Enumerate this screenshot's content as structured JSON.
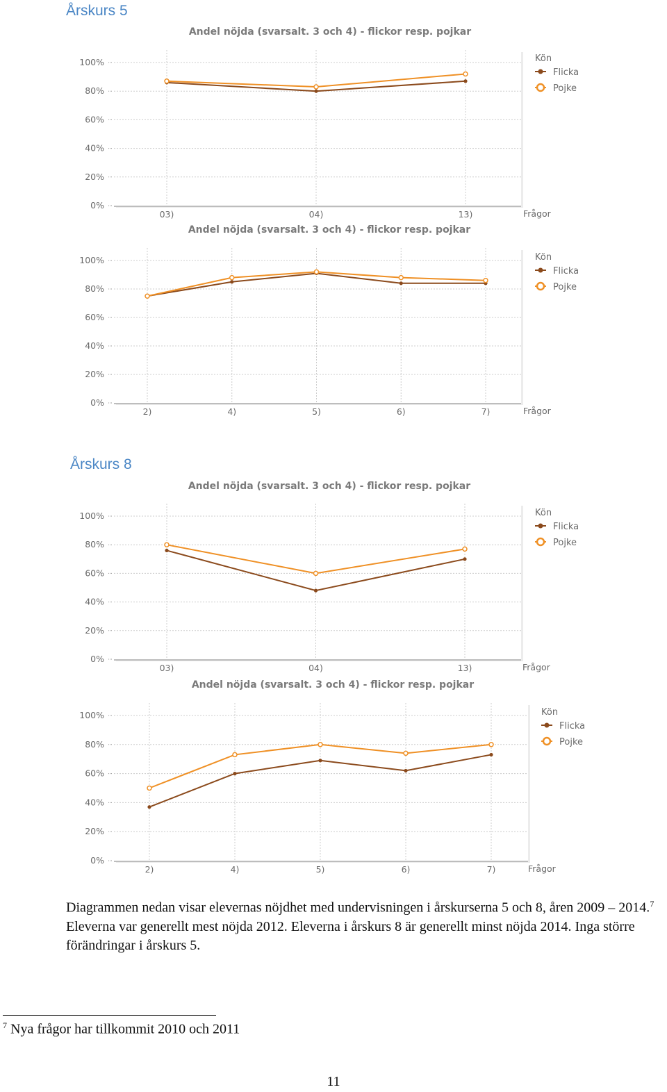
{
  "sections": [
    {
      "title": "Årskurs 5"
    },
    {
      "title": "Årskurs 8"
    }
  ],
  "colors": {
    "flicka": "#8b4a1c",
    "pojke": "#ef9025",
    "grid": "#cccccc",
    "axis": "#bdbdbd"
  },
  "chart_data": [
    {
      "type": "line",
      "title": "Andel nöjda (svarsalt. 3 och 4) - flickor resp. pojkar",
      "xlabel": "Frågor",
      "categories": [
        "03)",
        "04)",
        "13)"
      ],
      "yticks": [
        "0%",
        "20%",
        "40%",
        "60%",
        "80%",
        "100%"
      ],
      "ylim": [
        0,
        100
      ],
      "legend_title": "Kön",
      "legend_position": "right",
      "series": [
        {
          "name": "Flicka",
          "values": [
            86,
            80,
            87
          ]
        },
        {
          "name": "Pojke",
          "values": [
            87,
            83,
            92
          ]
        }
      ]
    },
    {
      "type": "line",
      "title": "Andel nöjda (svarsalt. 3 och 4) -  flickor resp. pojkar",
      "xlabel": "Frågor",
      "categories": [
        "2)",
        "4)",
        "5)",
        "6)",
        "7)"
      ],
      "yticks": [
        "0%",
        "20%",
        "40%",
        "60%",
        "80%",
        "100%"
      ],
      "ylim": [
        0,
        100
      ],
      "legend_title": "Kön",
      "legend_position": "right",
      "series": [
        {
          "name": "Flicka",
          "values": [
            75,
            85,
            91,
            84,
            84
          ]
        },
        {
          "name": "Pojke",
          "values": [
            75,
            88,
            92,
            88,
            86
          ]
        }
      ]
    },
    {
      "type": "line",
      "title": "Andel nöjda (svarsalt. 3 och 4) - flickor resp. pojkar",
      "xlabel": "Frågor",
      "categories": [
        "03)",
        "04)",
        "13)"
      ],
      "yticks": [
        "0%",
        "20%",
        "40%",
        "60%",
        "80%",
        "100%"
      ],
      "ylim": [
        0,
        100
      ],
      "legend_title": "Kön",
      "legend_position": "right",
      "series": [
        {
          "name": "Flicka",
          "values": [
            76,
            48,
            70
          ]
        },
        {
          "name": "Pojke",
          "values": [
            80,
            60,
            77
          ]
        }
      ]
    },
    {
      "type": "line",
      "title": "Andel nöjda (svarsalt. 3 och 4) -  flickor resp. pojkar",
      "xlabel": "Frågor",
      "categories": [
        "2)",
        "4)",
        "5)",
        "6)",
        "7)"
      ],
      "yticks": [
        "0%",
        "20%",
        "40%",
        "60%",
        "80%",
        "100%"
      ],
      "ylim": [
        0,
        100
      ],
      "legend_title": "Kön",
      "legend_position": "right",
      "series": [
        {
          "name": "Flicka",
          "values": [
            37,
            60,
            69,
            62,
            73
          ]
        },
        {
          "name": "Pojke",
          "values": [
            50,
            73,
            80,
            74,
            80
          ]
        }
      ]
    }
  ],
  "paragraph": {
    "part1": "Diagrammen nedan visar elevernas nöjdhet med undervisningen i årskurserna 5 och 8, åren 2009 – 2014.",
    "sup": "7",
    "part2": " Eleverna var generellt mest nöjda 2012. Eleverna i årskurs 8 är generellt minst nöjda 2014. Inga större förändringar i årskurs 5."
  },
  "footnote": {
    "number": "7",
    "text": " Nya frågor har tillkommit 2010 och 2011"
  },
  "page_number": "11"
}
